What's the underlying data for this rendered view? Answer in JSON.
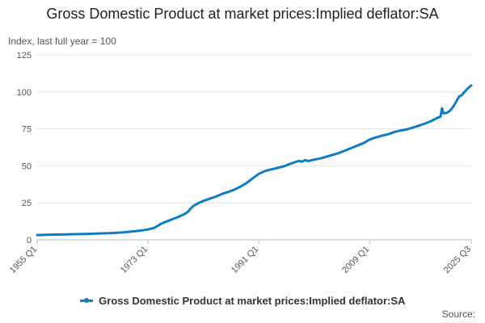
{
  "chart_data": {
    "type": "line",
    "title": "Gross Domestic Product at market prices:Implied deflator:SA",
    "ylabel": "Index, last full year = 100",
    "xlabel": "",
    "ylim": [
      0,
      125
    ],
    "yticks": [
      0,
      25,
      50,
      75,
      100,
      125
    ],
    "xlim": [
      1955.0,
      2025.5
    ],
    "xticks": [
      {
        "value": 1955.0,
        "label": "1955 Q1"
      },
      {
        "value": 1973.0,
        "label": "1973 Q1"
      },
      {
        "value": 1991.0,
        "label": "1991 Q1"
      },
      {
        "value": 2009.0,
        "label": "2009 Q1"
      },
      {
        "value": 2025.5,
        "label": "2025 Q3"
      }
    ],
    "grid": true,
    "legend_position": "bottom",
    "series": [
      {
        "name": "Gross Domestic Product at market prices:Implied deflator:SA",
        "color": "#0f7dc2",
        "points": [
          [
            1955.0,
            3.2
          ],
          [
            1957.0,
            3.5
          ],
          [
            1959.0,
            3.6
          ],
          [
            1961.0,
            3.8
          ],
          [
            1963.0,
            4.0
          ],
          [
            1965.0,
            4.3
          ],
          [
            1967.0,
            4.6
          ],
          [
            1969.0,
            5.1
          ],
          [
            1971.0,
            5.9
          ],
          [
            1972.0,
            6.4
          ],
          [
            1973.0,
            7.0
          ],
          [
            1974.0,
            8.1
          ],
          [
            1974.5,
            9.2
          ],
          [
            1975.0,
            10.6
          ],
          [
            1975.5,
            11.5
          ],
          [
            1976.0,
            12.4
          ],
          [
            1977.0,
            14.0
          ],
          [
            1978.0,
            15.6
          ],
          [
            1979.0,
            17.5
          ],
          [
            1979.5,
            19.0
          ],
          [
            1980.0,
            21.5
          ],
          [
            1980.5,
            23.2
          ],
          [
            1981.0,
            24.4
          ],
          [
            1982.0,
            26.3
          ],
          [
            1983.0,
            27.8
          ],
          [
            1984.0,
            29.2
          ],
          [
            1985.0,
            31.0
          ],
          [
            1986.0,
            32.3
          ],
          [
            1987.0,
            33.9
          ],
          [
            1988.0,
            35.9
          ],
          [
            1989.0,
            38.4
          ],
          [
            1990.0,
            41.6
          ],
          [
            1991.0,
            44.6
          ],
          [
            1992.0,
            46.5
          ],
          [
            1993.0,
            47.6
          ],
          [
            1994.0,
            48.6
          ],
          [
            1995.0,
            49.6
          ],
          [
            1996.0,
            51.2
          ],
          [
            1997.0,
            52.7
          ],
          [
            1997.5,
            53.4
          ],
          [
            1998.0,
            52.8
          ],
          [
            1998.5,
            53.9
          ],
          [
            1999.0,
            53.3
          ],
          [
            2000.0,
            54.2
          ],
          [
            2001.0,
            55.0
          ],
          [
            2002.0,
            56.2
          ],
          [
            2003.0,
            57.4
          ],
          [
            2004.0,
            58.7
          ],
          [
            2005.0,
            60.3
          ],
          [
            2006.0,
            62.0
          ],
          [
            2007.0,
            63.7
          ],
          [
            2008.0,
            65.4
          ],
          [
            2009.0,
            67.8
          ],
          [
            2010.0,
            69.2
          ],
          [
            2011.0,
            70.4
          ],
          [
            2012.0,
            71.4
          ],
          [
            2013.0,
            72.8
          ],
          [
            2014.0,
            73.9
          ],
          [
            2015.0,
            74.6
          ],
          [
            2016.0,
            75.8
          ],
          [
            2017.0,
            77.2
          ],
          [
            2018.0,
            78.6
          ],
          [
            2019.0,
            80.3
          ],
          [
            2020.0,
            82.5
          ],
          [
            2020.5,
            83.2
          ],
          [
            2020.75,
            89.0
          ],
          [
            2021.0,
            85.5
          ],
          [
            2021.5,
            85.8
          ],
          [
            2022.0,
            87.0
          ],
          [
            2022.5,
            89.5
          ],
          [
            2023.0,
            93.0
          ],
          [
            2023.5,
            96.8
          ],
          [
            2024.0,
            98.0
          ],
          [
            2024.5,
            100.5
          ],
          [
            2025.0,
            102.6
          ],
          [
            2025.5,
            104.3
          ]
        ]
      }
    ]
  },
  "legend": {
    "label": "Gross Domestic Product at market prices:Implied deflator:SA",
    "color": "#0f7dc2"
  },
  "source": {
    "label": "Source:"
  }
}
